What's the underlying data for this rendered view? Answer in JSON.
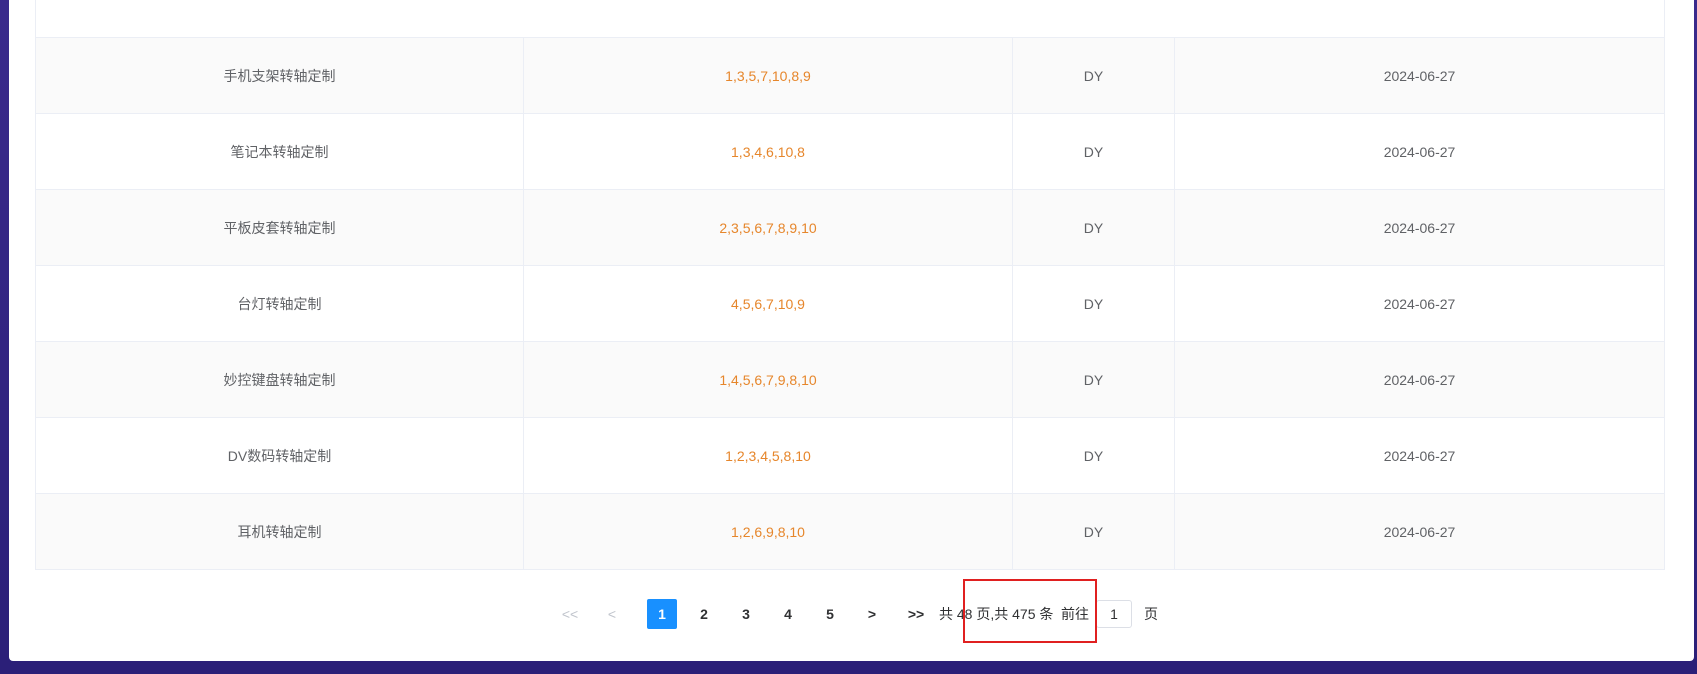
{
  "table": {
    "rows": [
      [
        "手机支架转轴定制",
        "1,3,5,7,10,8,9",
        "DY",
        "2024-06-27"
      ],
      [
        "笔记本转轴定制",
        "1,3,4,6,10,8",
        "DY",
        "2024-06-27"
      ],
      [
        "平板皮套转轴定制",
        "2,3,5,6,7,8,9,10",
        "DY",
        "2024-06-27"
      ],
      [
        "台灯转轴定制",
        "4,5,6,7,10,9",
        "DY",
        "2024-06-27"
      ],
      [
        "妙控键盘转轴定制",
        "1,4,5,6,7,9,8,10",
        "DY",
        "2024-06-27"
      ],
      [
        "DV数码转轴定制",
        "1,2,3,4,5,8,10",
        "DY",
        "2024-06-27"
      ],
      [
        "耳机转轴定制",
        "1,2,6,9,8,10",
        "DY",
        "2024-06-27"
      ]
    ]
  },
  "pagination": {
    "first": "<<",
    "prev": "<",
    "pages": [
      "1",
      "2",
      "3",
      "4",
      "5"
    ],
    "next": ">",
    "last": ">>",
    "summary": "共 48 页,共 475 条",
    "goto": "前往",
    "goto_value": "1",
    "goto_unit": "页"
  }
}
